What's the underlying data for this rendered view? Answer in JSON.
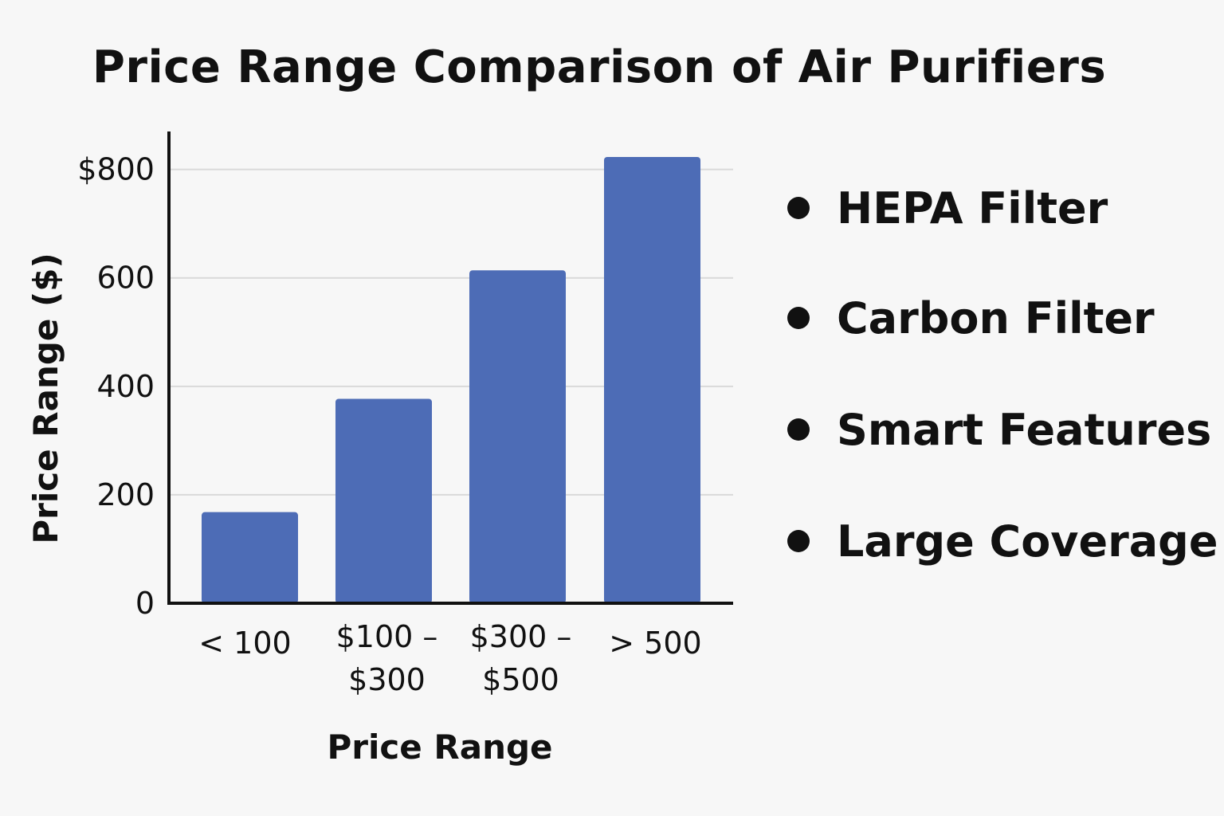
{
  "chart_data": {
    "type": "bar",
    "title": "Price Range Comparison of Air Purifiers",
    "xlabel": "Price Range",
    "ylabel": "Price Range ($)",
    "categories": [
      "< 100",
      "$100 – $300",
      "$300 – $500",
      "> 500"
    ],
    "category_lines": [
      [
        "< 100"
      ],
      [
        "$100 –",
        "$300"
      ],
      [
        "$300 –",
        "$500"
      ],
      [
        "> 500"
      ]
    ],
    "values": [
      168,
      377,
      614,
      823
    ],
    "ylim": [
      0,
      870
    ],
    "yticks": [
      0,
      200,
      400,
      600,
      800
    ],
    "ytick_labels": [
      "0",
      "200",
      "400",
      "600",
      "$800"
    ],
    "grid": true,
    "bar_color": "#4d6cb6",
    "grid_color": "#d9d9d9",
    "axis_color": "#111111"
  },
  "legend": {
    "placement": "right",
    "items": [
      "HEPA Filter",
      "Carbon Filter",
      "Smart Features",
      "Large Coverage"
    ]
  }
}
